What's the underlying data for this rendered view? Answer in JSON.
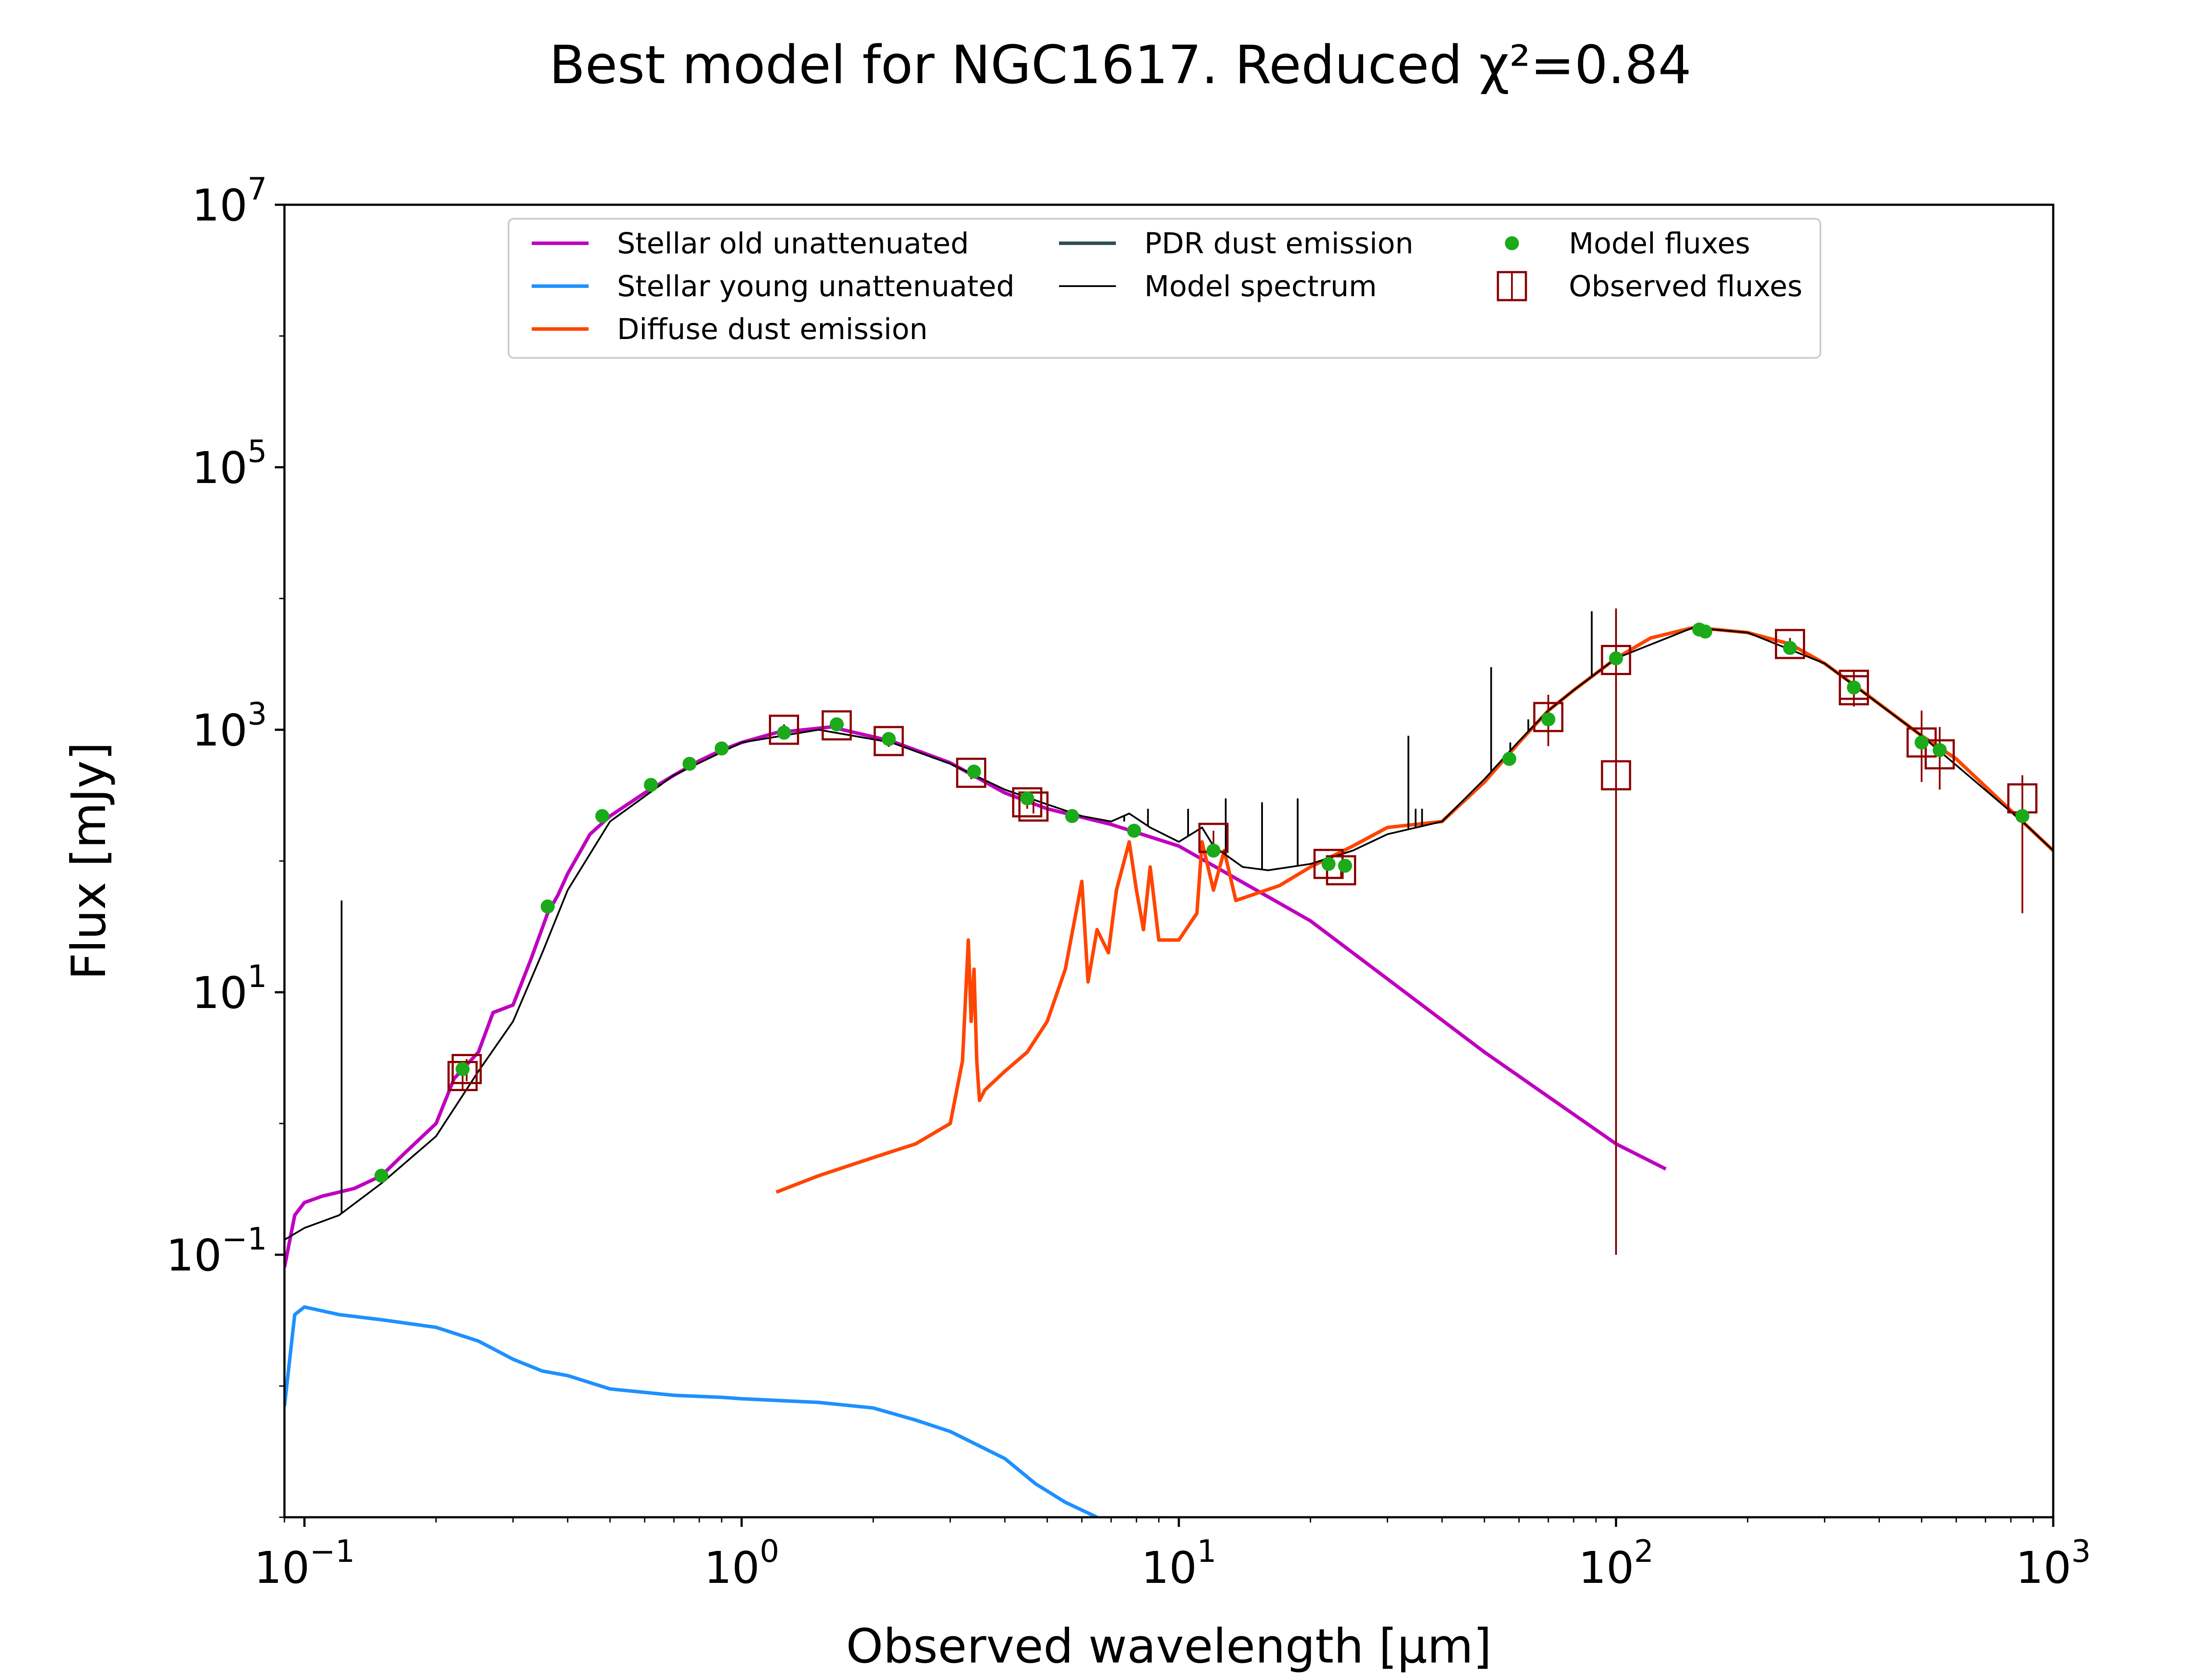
{
  "chart_data": {
    "type": "line",
    "title": "Best model for NGC1617. Reduced χ²=0.84",
    "xlabel": "Observed wavelength [μm]",
    "ylabel": "Flux [mJy]",
    "x_scale": "log",
    "y_scale": "log",
    "xlim": [
      0.09,
      1000
    ],
    "ylim": [
      0.001,
      10000000
    ],
    "grid": false,
    "legend_position": "top-center",
    "x_ticks": [
      {
        "value": 0.1,
        "base": "10",
        "exp": "−1"
      },
      {
        "value": 1,
        "base": "10",
        "exp": "0"
      },
      {
        "value": 10,
        "base": "10",
        "exp": "1"
      },
      {
        "value": 100,
        "base": "10",
        "exp": "2"
      },
      {
        "value": 1000,
        "base": "10",
        "exp": "3"
      }
    ],
    "y_ticks": [
      {
        "value": 0.1,
        "base": "10",
        "exp": "−1"
      },
      {
        "value": 10,
        "base": "10",
        "exp": "1"
      },
      {
        "value": 1000,
        "base": "10",
        "exp": "3"
      },
      {
        "value": 100000,
        "base": "10",
        "exp": "5"
      },
      {
        "value": 10000000,
        "base": "10",
        "exp": "7"
      }
    ],
    "series": [
      {
        "name": "Stellar old unattenuated",
        "kind": "line",
        "color": "#bf00bf",
        "x": [
          0.09,
          0.095,
          0.1,
          0.11,
          0.12,
          0.13,
          0.15,
          0.17,
          0.2,
          0.22,
          0.25,
          0.27,
          0.3,
          0.33,
          0.36,
          0.38,
          0.4,
          0.45,
          0.5,
          0.6,
          0.7,
          0.8,
          0.9,
          1.0,
          1.2,
          1.6,
          2.2,
          3.0,
          4.0,
          5.0,
          7.0,
          10,
          20,
          50,
          100,
          130
        ],
        "y": [
          0.08,
          0.2,
          0.25,
          0.28,
          0.3,
          0.32,
          0.4,
          0.6,
          1.0,
          2.2,
          3.5,
          7.0,
          8.0,
          18,
          40,
          55,
          80,
          160,
          220,
          330,
          450,
          580,
          700,
          800,
          950,
          1050,
          820,
          560,
          330,
          250,
          190,
          130,
          35,
          3.5,
          0.7,
          0.45
        ]
      },
      {
        "name": "Stellar young unattenuated",
        "kind": "line",
        "color": "#1e90ff",
        "x": [
          0.09,
          0.095,
          0.1,
          0.12,
          0.15,
          0.2,
          0.25,
          0.3,
          0.35,
          0.4,
          0.5,
          0.7,
          0.9,
          1.0,
          1.5,
          2.0,
          2.5,
          3.0,
          4.0,
          4.7,
          5.5,
          6.5
        ],
        "y": [
          0.007,
          0.035,
          0.04,
          0.035,
          0.032,
          0.028,
          0.022,
          0.016,
          0.013,
          0.012,
          0.0095,
          0.0085,
          0.0082,
          0.008,
          0.0075,
          0.0068,
          0.0055,
          0.0045,
          0.0028,
          0.0018,
          0.0013,
          0.001
        ]
      },
      {
        "name": "Diffuse dust emission",
        "kind": "line",
        "color": "#ff4500",
        "x": [
          1.2,
          1.5,
          2.0,
          2.5,
          3.0,
          3.2,
          3.3,
          3.35,
          3.4,
          3.45,
          3.5,
          3.6,
          4.0,
          4.5,
          5.0,
          5.5,
          6.0,
          6.2,
          6.5,
          6.9,
          7.2,
          7.7,
          8.0,
          8.3,
          8.6,
          9.0,
          10.0,
          11.0,
          11.3,
          12.0,
          12.7,
          13.5,
          17,
          20,
          25,
          30,
          40,
          50,
          60,
          70,
          80,
          100,
          120,
          150,
          170,
          200,
          250,
          300,
          350,
          500,
          600,
          850,
          1000
        ],
        "y": [
          0.3,
          0.4,
          0.55,
          0.7,
          1.0,
          3.0,
          25,
          6,
          15,
          3,
          1.5,
          1.8,
          2.5,
          3.5,
          6,
          15,
          70,
          12,
          30,
          20,
          60,
          140,
          60,
          30,
          90,
          25,
          25,
          40,
          140,
          60,
          120,
          50,
          65,
          90,
          130,
          180,
          200,
          400,
          800,
          1400,
          2000,
          3500,
          5000,
          6000,
          5800,
          5500,
          4500,
          3200,
          2200,
          900,
          600,
          200,
          120
        ]
      },
      {
        "name": "PDR dust emission",
        "kind": "line",
        "color": "#2f4f4f",
        "x": [],
        "y": []
      },
      {
        "name": "Model spectrum",
        "kind": "line",
        "color": "#000000",
        "x": [
          0.09,
          0.1,
          0.12,
          0.15,
          0.2,
          0.25,
          0.3,
          0.35,
          0.4,
          0.5,
          0.7,
          1.0,
          1.5,
          2.2,
          3.0,
          4.0,
          5.0,
          6.0,
          7.0,
          7.7,
          8.6,
          10,
          11.3,
          12,
          14,
          16,
          20,
          25,
          30,
          40,
          50,
          60,
          70,
          80,
          100,
          150,
          200,
          300,
          500,
          850,
          1000
        ],
        "y": [
          0.13,
          0.16,
          0.2,
          0.35,
          0.8,
          2.5,
          6,
          20,
          60,
          200,
          450,
          800,
          1000,
          800,
          550,
          350,
          270,
          220,
          200,
          230,
          180,
          140,
          180,
          130,
          90,
          85,
          95,
          120,
          160,
          200,
          420,
          820,
          1400,
          2000,
          3500,
          6000,
          5500,
          3200,
          900,
          200,
          120
        ]
      }
    ],
    "model_fluxes": {
      "name": "Model fluxes",
      "color": "#1aaa1a",
      "x": [
        0.15,
        0.23,
        0.36,
        0.48,
        0.62,
        0.76,
        0.9,
        1.25,
        1.65,
        2.17,
        3.4,
        4.5,
        5.7,
        7.9,
        12,
        22,
        24,
        57,
        70,
        100,
        155,
        160,
        250,
        350,
        500,
        550,
        850
      ],
      "y": [
        0.4,
        2.6,
        45,
        220,
        380,
        550,
        720,
        950,
        1100,
        850,
        480,
        300,
        220,
        170,
        120,
        95,
        92,
        600,
        1200,
        3500,
        5800,
        5600,
        4200,
        2100,
        800,
        700,
        220
      ]
    },
    "observed_fluxes": {
      "name": "Observed fluxes",
      "color": "#8b0000",
      "x": [
        0.23,
        0.235,
        1.25,
        1.65,
        2.17,
        3.35,
        4.5,
        4.65,
        12,
        22,
        23.5,
        70,
        100,
        100,
        250,
        350,
        350,
        500,
        550,
        850
      ],
      "y": [
        2.3,
        2.6,
        1000,
        1080,
        820,
        470,
        280,
        260,
        150,
        95,
        85,
        1250,
        3400,
        450,
        4500,
        2200,
        2000,
        800,
        650,
        300
      ],
      "yerr_low": [
        0.5,
        0.5,
        100,
        100,
        80,
        50,
        30,
        30,
        20,
        10,
        10,
        500,
        3399.9,
        449.9,
        500,
        600,
        500,
        400,
        300,
        260
      ],
      "yerr_high": [
        0.5,
        0.5,
        100,
        100,
        80,
        50,
        30,
        30,
        20,
        10,
        10,
        600,
        5000,
        2000,
        500,
        600,
        500,
        600,
        400,
        150
      ]
    },
    "emission_lines": {
      "color": "#000000",
      "x": [
        0.1216,
        7.5,
        8.5,
        10.5,
        12.8,
        15.5,
        18.7,
        33.5,
        34.8,
        36,
        51.8,
        57.3,
        63,
        88,
        100
      ],
      "y": [
        50,
        200,
        250,
        250,
        300,
        280,
        300,
        900,
        250,
        250,
        3000,
        800,
        1200,
        8000,
        8000
      ]
    }
  },
  "legend": {
    "items": [
      {
        "label": "Stellar old unattenuated",
        "kind": "line",
        "color": "#bf00bf"
      },
      {
        "label": "Stellar young unattenuated",
        "kind": "line",
        "color": "#1e90ff"
      },
      {
        "label": "Diffuse dust emission",
        "kind": "line",
        "color": "#ff4500"
      },
      {
        "label": "PDR dust emission",
        "kind": "line",
        "color": "#2f4f4f"
      },
      {
        "label": "Model spectrum",
        "kind": "thin-line",
        "color": "#000000"
      },
      {
        "label": "Model fluxes",
        "kind": "dot",
        "color": "#1aaa1a"
      },
      {
        "label": "Observed fluxes",
        "kind": "square",
        "color": "#8b0000"
      }
    ]
  }
}
